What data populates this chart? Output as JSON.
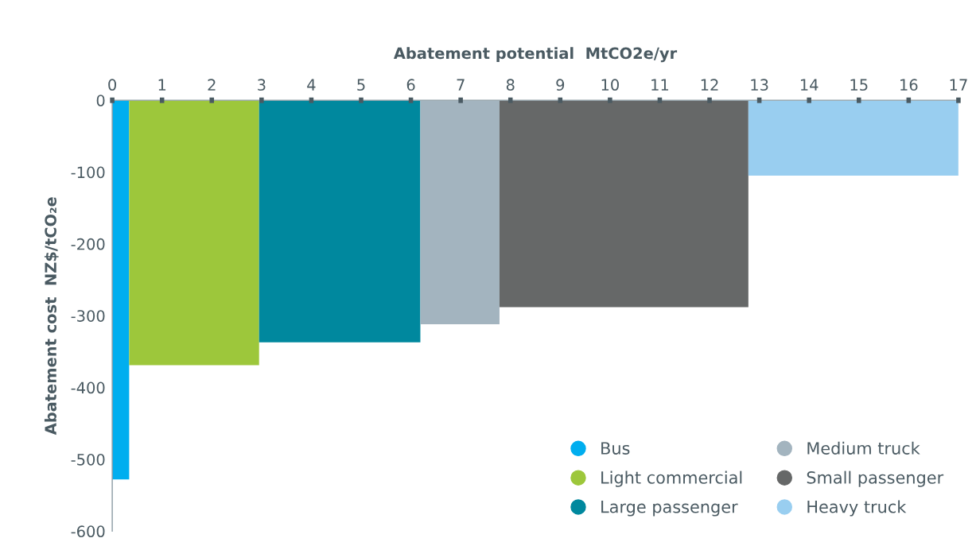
{
  "chart_data": {
    "type": "area",
    "xlabel": "Abatement potential  MtCO2e/yr",
    "ylabel": "Abatement cost  NZ$/tCO₂e",
    "xlim": [
      0,
      17
    ],
    "xticks": [
      0,
      1,
      2,
      3,
      4,
      5,
      6,
      7,
      8,
      9,
      10,
      11,
      12,
      13,
      14,
      15,
      16,
      17
    ],
    "ylim": [
      -600,
      0
    ],
    "yticks": [
      0,
      -100,
      -200,
      -300,
      -400,
      -500,
      -600
    ],
    "grid": false,
    "legend": "bottom right",
    "series": [
      {
        "name": "Bus",
        "color": "#00aeef",
        "x": [
          0,
          0.34
        ],
        "values": [
          -528,
          -528
        ]
      },
      {
        "name": "Light commercial",
        "color": "#9dc73b",
        "x": [
          0.34,
          2.95
        ],
        "values": [
          -369,
          -369
        ]
      },
      {
        "name": "Large passenger",
        "color": "#00889e",
        "x": [
          2.95,
          6.19
        ],
        "values": [
          -337,
          -337
        ]
      },
      {
        "name": "Medium truck",
        "color": "#a3b4bf",
        "x": [
          6.19,
          7.78
        ],
        "values": [
          -312,
          -312
        ]
      },
      {
        "name": "Small passenger",
        "color": "#666868",
        "x": [
          7.78,
          12.78
        ],
        "values": [
          -288,
          -288
        ]
      },
      {
        "name": "Heavy truck",
        "color": "#99cef0",
        "x": [
          12.78,
          17
        ],
        "values": [
          -105,
          -105
        ]
      }
    ]
  }
}
